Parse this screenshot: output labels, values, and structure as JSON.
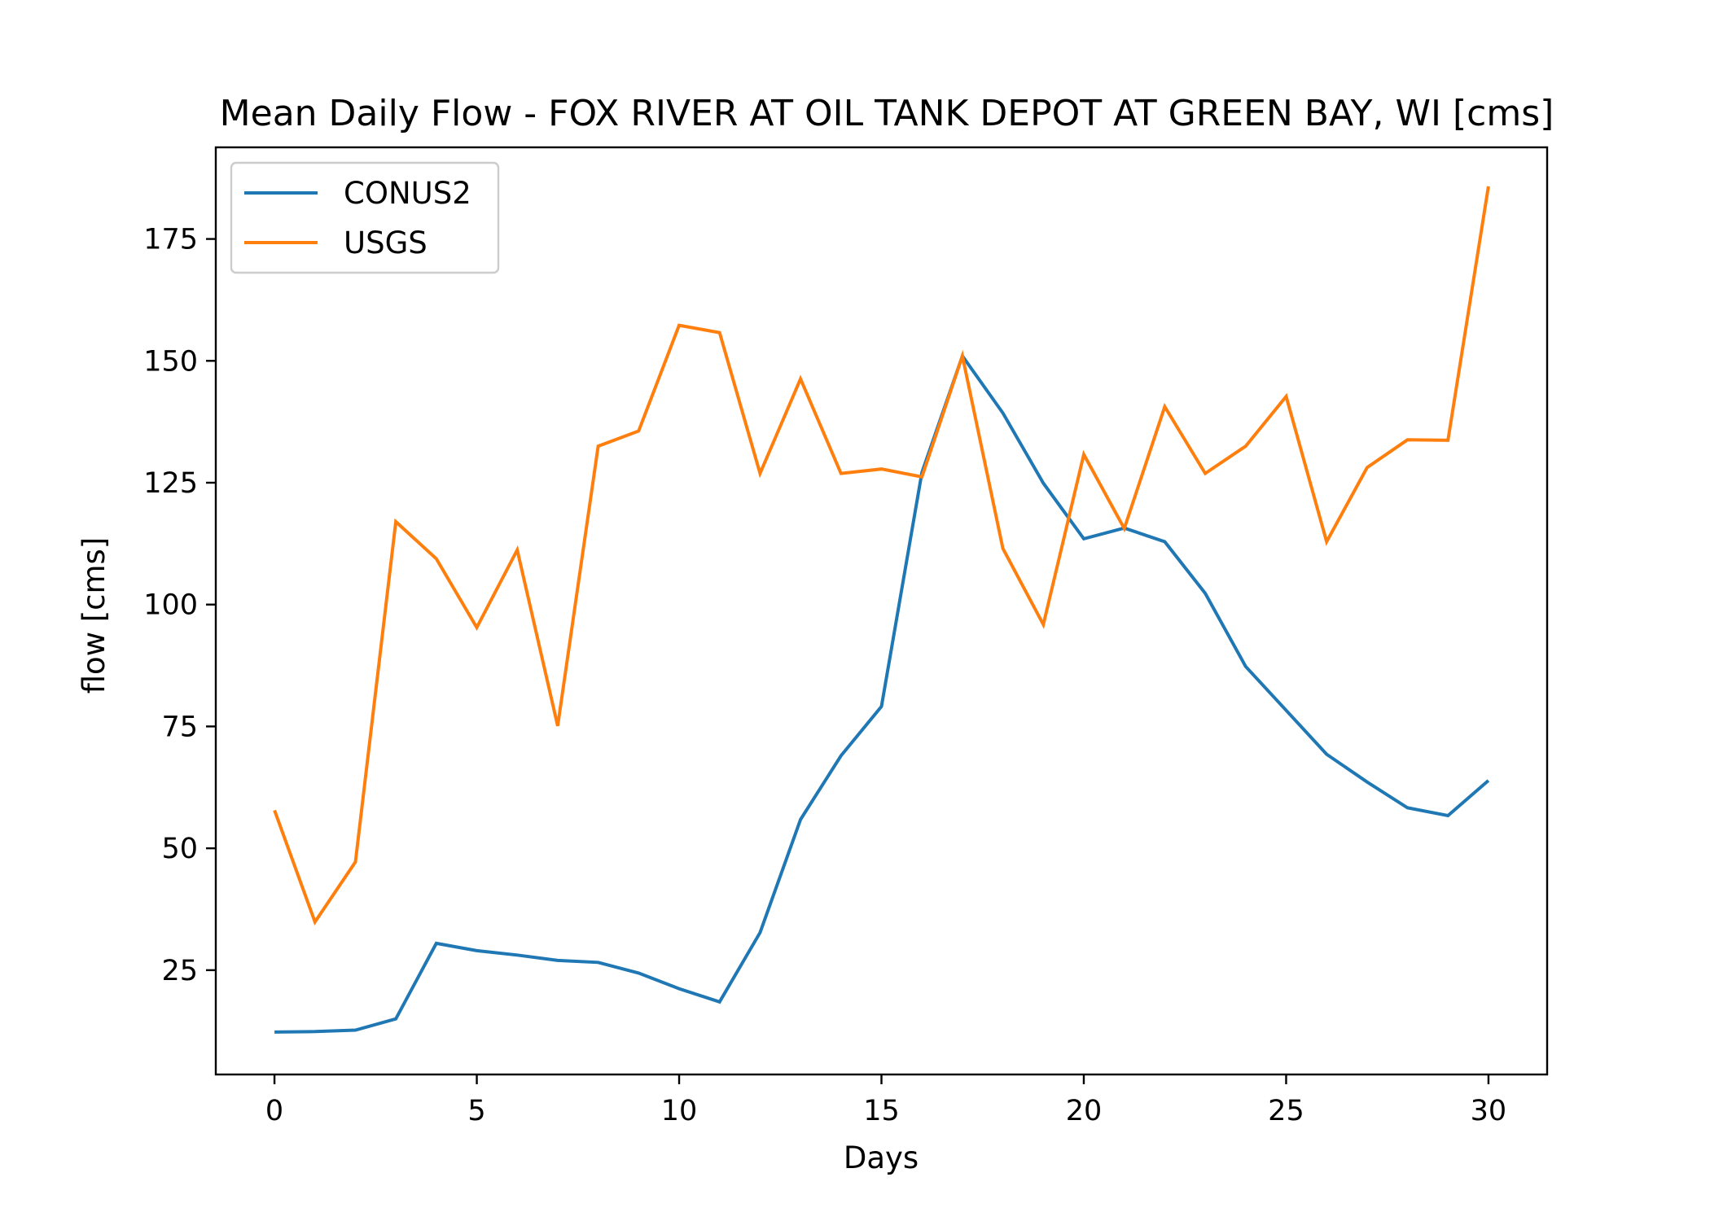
{
  "chart_data": {
    "type": "line",
    "title": "Mean Daily Flow - FOX RIVER AT OIL TANK DEPOT AT GREEN BAY, WI [cms]",
    "xlabel": "Days",
    "ylabel": "flow [cms]",
    "xlim": [
      -1.45,
      31.45
    ],
    "ylim": [
      3.6,
      193.8
    ],
    "xticks": [
      0,
      5,
      10,
      15,
      20,
      25,
      30
    ],
    "yticks": [
      25,
      50,
      75,
      100,
      125,
      150,
      175
    ],
    "grid": false,
    "legend_position": "upper-left",
    "x": [
      0,
      1,
      2,
      3,
      4,
      5,
      6,
      7,
      8,
      9,
      10,
      11,
      12,
      13,
      14,
      15,
      16,
      17,
      18,
      19,
      20,
      21,
      22,
      23,
      24,
      25,
      26,
      27,
      28,
      29,
      30
    ],
    "series": [
      {
        "name": "CONUS2",
        "color": "#1f77b4",
        "values": [
          12.3,
          12.4,
          12.7,
          15.0,
          30.5,
          29.0,
          28.1,
          27.0,
          26.6,
          24.4,
          21.2,
          18.5,
          32.7,
          55.9,
          69.0,
          79.1,
          127.1,
          151.0,
          139.3,
          124.9,
          113.5,
          115.7,
          112.9,
          102.3,
          87.3,
          78.3,
          69.3,
          63.6,
          58.3,
          56.7,
          63.9
        ],
        "value_precision": "estimated from axis gridlines"
      },
      {
        "name": "USGS",
        "color": "#ff7f0e",
        "values": [
          57.8,
          34.9,
          47.2,
          117.0,
          109.4,
          95.3,
          111.2,
          75.1,
          132.5,
          135.6,
          157.3,
          155.8,
          126.9,
          146.3,
          126.9,
          127.8,
          126.2,
          151.0,
          111.5,
          95.9,
          130.8,
          115.6,
          140.6,
          126.9,
          132.5,
          142.7,
          112.9,
          128.1,
          133.8,
          133.7,
          185.8
        ]
      }
    ]
  }
}
